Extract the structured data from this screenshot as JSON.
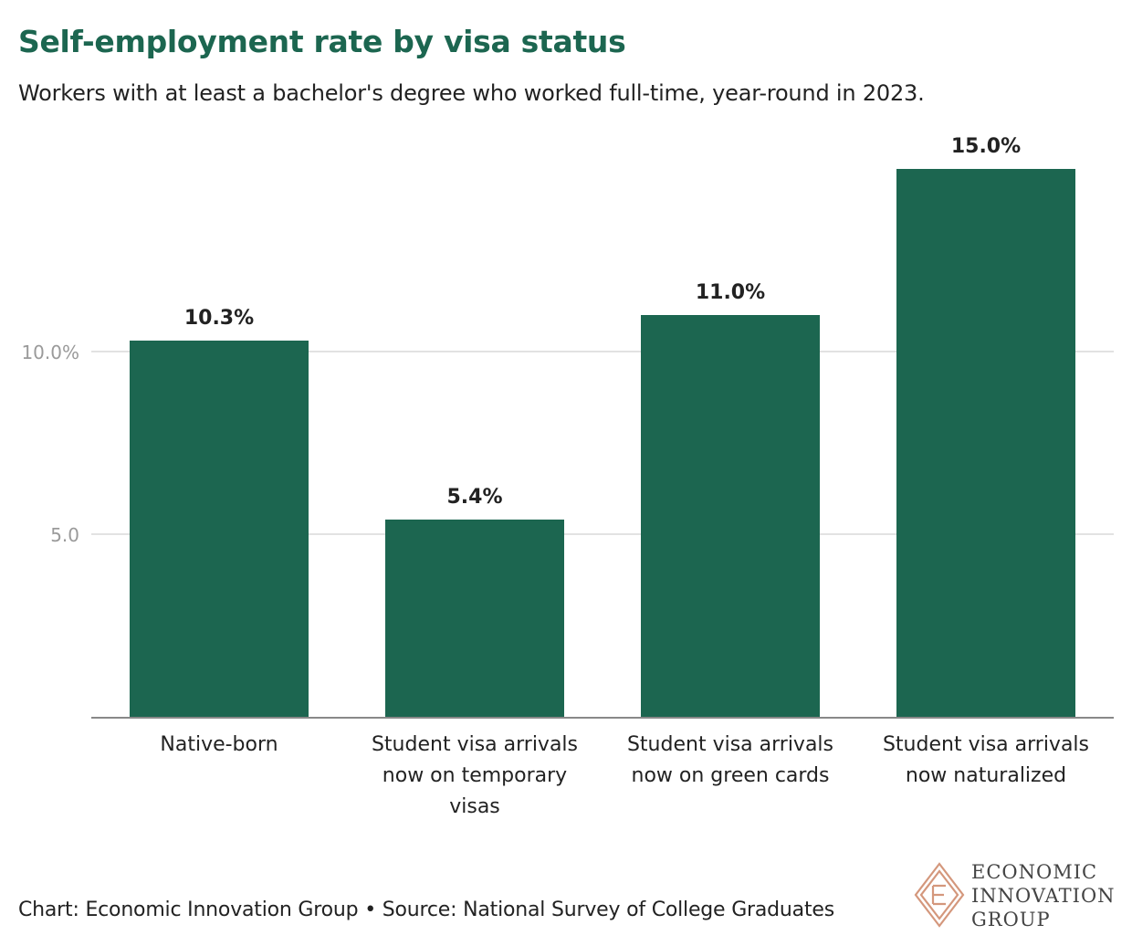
{
  "title": "Self-employment rate by visa status",
  "subtitle": "Workers with at least a bachelor's degree who worked full-time, year-round in 2023.",
  "footer": "Chart: Economic Innovation Group • Source: National Survey of College Graduates",
  "logo": {
    "lines": [
      "ECONOMIC",
      "INNOVATION",
      "GROUP"
    ],
    "icon": "eig-diamond-icon"
  },
  "colors": {
    "bar": "#1c6650",
    "title": "#1c6650",
    "grid": "#d9d9d9",
    "axis": "#888888",
    "tick": "#9a9a9a",
    "logo": "#d4977c"
  },
  "chart_data": {
    "type": "bar",
    "title": "Self-employment rate by visa status",
    "xlabel": "",
    "ylabel": "",
    "categories": [
      [
        "Native-born"
      ],
      [
        "Student visa arrivals",
        "now on temporary",
        "visas"
      ],
      [
        "Student visa arrivals",
        "now on green cards"
      ],
      [
        "Student visa arrivals",
        "now naturalized"
      ]
    ],
    "values": [
      10.3,
      5.4,
      11.0,
      15.0
    ],
    "value_labels": [
      "10.3%",
      "5.4%",
      "11.0%",
      "15.0%"
    ],
    "yticks": [
      5.0,
      10.0
    ],
    "ytick_labels": [
      "5.0",
      "10.0%"
    ],
    "ylim": [
      0,
      16
    ],
    "grid": true,
    "legend": "none"
  }
}
